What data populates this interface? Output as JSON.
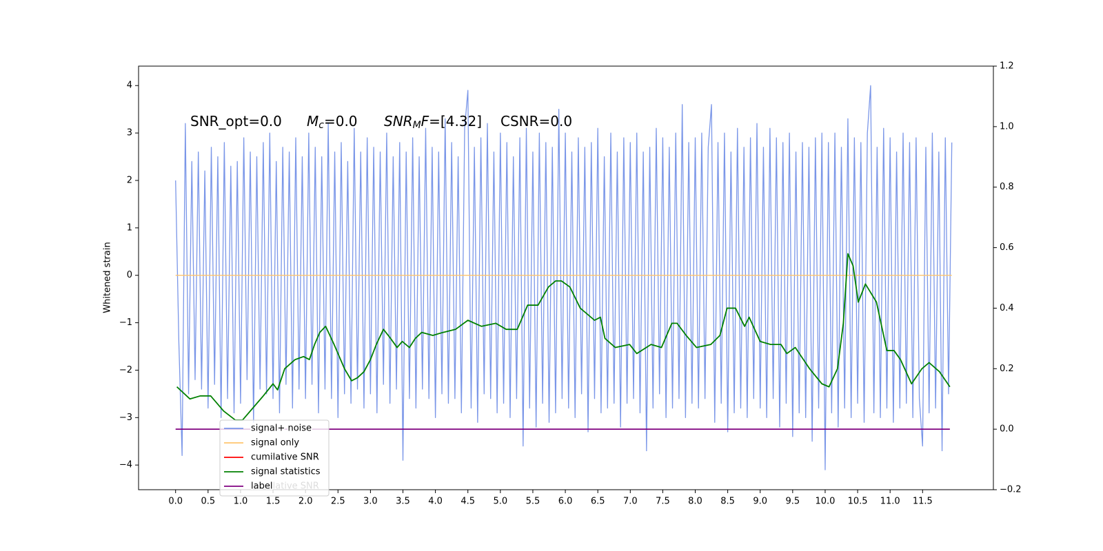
{
  "chart_data": {
    "type": "line",
    "ylabel": "Whitened strain",
    "annotations": [
      {
        "parts": [
          {
            "text": "SNR_opt=0.0",
            "style": "normal"
          }
        ]
      },
      {
        "parts": [
          {
            "text": "M",
            "style": "italic"
          },
          {
            "text": "c",
            "style": "italic-sub"
          },
          {
            "text": "=0.0",
            "style": "normal"
          }
        ]
      },
      {
        "parts": [
          {
            "text": "SNR",
            "style": "italic"
          },
          {
            "text": "M",
            "style": "italic-sub"
          },
          {
            "text": "F",
            "style": "italic"
          },
          {
            "text": "=[4.32]",
            "style": "normal"
          }
        ]
      },
      {
        "parts": [
          {
            "text": "CSNR=0.0",
            "style": "normal"
          }
        ]
      }
    ],
    "legend_ghost_text": "cumilative SNR",
    "legend": "lower left",
    "xlim": [
      -0.57,
      12.59
    ],
    "ylim": [
      -4.52,
      4.41
    ],
    "y2lim": [
      -0.2,
      1.2
    ],
    "xticks": [
      {
        "value": 0,
        "label": "0.0"
      },
      0.5,
      {
        "value": 1,
        "label": "1.0"
      },
      1.5,
      {
        "value": 2,
        "label": "2.0"
      },
      2.5,
      {
        "value": 3,
        "label": "3.0"
      },
      3.5,
      {
        "value": 4,
        "label": "4.0"
      },
      4.5,
      {
        "value": 5,
        "label": "5.0"
      },
      5.5,
      {
        "value": 6,
        "label": "6.0"
      },
      6.5,
      {
        "value": 7,
        "label": "7.0"
      },
      7.5,
      {
        "value": 8,
        "label": "8.0"
      },
      8.5,
      {
        "value": 9,
        "label": "9.0"
      },
      9.5,
      {
        "value": 10,
        "label": "10.0"
      },
      10.5,
      {
        "value": 11,
        "label": "11.0"
      },
      11.5
    ],
    "yticks": [
      {
        "value": -4,
        "label": "−4"
      },
      {
        "value": -3,
        "label": "−3"
      },
      {
        "value": -2,
        "label": "−2"
      },
      {
        "value": -1,
        "label": "−1"
      },
      0,
      1,
      2,
      3,
      4
    ],
    "y2ticks": [
      {
        "value": -0.2,
        "label": "−0.2"
      },
      {
        "value": 0,
        "label": "0.0"
      },
      0.2,
      0.4,
      0.6,
      0.8,
      {
        "value": 1,
        "label": "1.0"
      },
      1.2
    ],
    "series": [
      {
        "name": "signal+ noise",
        "color": "#7a96e8",
        "axis": "y",
        "x": [
          0,
          0.05,
          0.1,
          0.15,
          0.2,
          0.25,
          0.3,
          0.35,
          0.4,
          0.45,
          0.5,
          0.55,
          0.6,
          0.65,
          0.7,
          0.75,
          0.8,
          0.85,
          0.9,
          0.95,
          1,
          1.05,
          1.1,
          1.15,
          1.2,
          1.25,
          1.3,
          1.35,
          1.4,
          1.45,
          1.5,
          1.55,
          1.6,
          1.65,
          1.7,
          1.75,
          1.8,
          1.85,
          1.9,
          1.95,
          2,
          2.05,
          2.1,
          2.15,
          2.2,
          2.25,
          2.3,
          2.35,
          2.4,
          2.45,
          2.5,
          2.55,
          2.6,
          2.65,
          2.7,
          2.75,
          2.8,
          2.85,
          2.9,
          2.95,
          3,
          3.05,
          3.1,
          3.15,
          3.2,
          3.25,
          3.3,
          3.35,
          3.4,
          3.45,
          3.5,
          3.55,
          3.6,
          3.65,
          3.7,
          3.75,
          3.8,
          3.85,
          3.9,
          3.95,
          4,
          4.05,
          4.1,
          4.15,
          4.2,
          4.25,
          4.3,
          4.35,
          4.4,
          4.45,
          4.5,
          4.55,
          4.6,
          4.65,
          4.7,
          4.75,
          4.8,
          4.85,
          4.9,
          4.95,
          5,
          5.05,
          5.1,
          5.15,
          5.2,
          5.25,
          5.3,
          5.35,
          5.4,
          5.45,
          5.5,
          5.55,
          5.6,
          5.65,
          5.7,
          5.75,
          5.8,
          5.85,
          5.9,
          5.95,
          6,
          6.05,
          6.1,
          6.15,
          6.2,
          6.25,
          6.3,
          6.35,
          6.4,
          6.45,
          6.5,
          6.55,
          6.6,
          6.65,
          6.7,
          6.75,
          6.8,
          6.85,
          6.9,
          6.95,
          7,
          7.05,
          7.1,
          7.15,
          7.2,
          7.25,
          7.3,
          7.35,
          7.4,
          7.45,
          7.5,
          7.55,
          7.6,
          7.65,
          7.7,
          7.75,
          7.8,
          7.85,
          7.9,
          7.95,
          8,
          8.05,
          8.1,
          8.15,
          8.2,
          8.25,
          8.3,
          8.35,
          8.4,
          8.45,
          8.5,
          8.55,
          8.6,
          8.65,
          8.7,
          8.75,
          8.8,
          8.85,
          8.9,
          8.95,
          9,
          9.05,
          9.1,
          9.15,
          9.2,
          9.25,
          9.3,
          9.35,
          9.4,
          9.45,
          9.5,
          9.55,
          9.6,
          9.65,
          9.7,
          9.75,
          9.8,
          9.85,
          9.9,
          9.95,
          10,
          10.05,
          10.1,
          10.15,
          10.2,
          10.25,
          10.3,
          10.35,
          10.4,
          10.45,
          10.5,
          10.55,
          10.6,
          10.65,
          10.7,
          10.75,
          10.8,
          10.85,
          10.9,
          10.95,
          11,
          11.05,
          11.1,
          11.15,
          11.2,
          11.25,
          11.3,
          11.35,
          11.4,
          11.45,
          11.5,
          11.55,
          11.6,
          11.65,
          11.7,
          11.75,
          11.8,
          11.85,
          11.9,
          11.95
        ],
        "values": [
          2.0,
          -1.4,
          -3.8,
          3.2,
          -2.5,
          2.4,
          -2.2,
          2.6,
          -2.4,
          2.2,
          -2.8,
          2.7,
          -2.3,
          2.5,
          -3.0,
          2.8,
          -2.6,
          2.3,
          -2.9,
          2.4,
          -2.7,
          2.9,
          -2.2,
          2.6,
          -3.1,
          2.5,
          -2.4,
          2.8,
          -2.5,
          3.0,
          -2.6,
          2.4,
          -2.9,
          2.7,
          -2.3,
          2.6,
          -2.8,
          2.9,
          -2.4,
          2.5,
          -2.6,
          3.0,
          -2.3,
          2.7,
          -2.9,
          2.5,
          -2.4,
          3.2,
          -2.6,
          2.6,
          -3.0,
          2.8,
          -2.5,
          2.4,
          -2.7,
          3.1,
          -2.4,
          2.6,
          -2.8,
          2.9,
          -2.5,
          2.7,
          -2.9,
          2.6,
          -2.3,
          3.0,
          -2.7,
          2.5,
          -2.4,
          2.8,
          -3.9,
          2.6,
          -2.6,
          2.9,
          -2.8,
          2.5,
          -2.4,
          3.1,
          -2.6,
          2.7,
          -3.0,
          2.6,
          -2.5,
          3.3,
          -2.7,
          2.8,
          -2.6,
          2.5,
          -2.9,
          3.1,
          3.9,
          -2.8,
          2.7,
          -3.1,
          2.9,
          -2.5,
          3.2,
          -2.6,
          2.6,
          -2.9,
          3.0,
          -2.7,
          2.8,
          -3.0,
          2.5,
          -2.6,
          2.9,
          -3.6,
          3.1,
          -2.8,
          2.6,
          -3.2,
          3.0,
          -2.7,
          2.8,
          -3.1,
          2.7,
          -2.9,
          3.5,
          -2.6,
          3.0,
          -2.8,
          2.6,
          -3.0,
          2.9,
          -2.5,
          2.7,
          -3.3,
          2.8,
          -2.6,
          3.1,
          -2.9,
          2.5,
          -2.8,
          3.0,
          -2.7,
          2.6,
          -3.2,
          2.9,
          -2.7,
          2.8,
          -2.6,
          3.0,
          -2.9,
          2.6,
          -3.7,
          2.7,
          -2.8,
          3.1,
          -2.5,
          2.9,
          -3.0,
          2.7,
          -2.8,
          3.0,
          -2.6,
          3.6,
          -3.0,
          2.8,
          -2.7,
          2.9,
          -2.8,
          3.0,
          -2.6,
          2.7,
          3.6,
          -3.1,
          2.8,
          -2.7,
          3.0,
          -3.3,
          2.6,
          -2.9,
          3.1,
          -2.8,
          2.7,
          -3.0,
          2.9,
          -2.6,
          3.2,
          -2.8,
          2.7,
          -3.0,
          3.1,
          -2.6,
          2.9,
          -3.2,
          2.8,
          -2.7,
          3.0,
          -3.4,
          2.6,
          -2.9,
          2.8,
          -3.0,
          2.7,
          -3.5,
          2.9,
          -2.8,
          3.0,
          -4.1,
          2.8,
          -2.9,
          3.0,
          -3.2,
          2.7,
          -2.8,
          3.3,
          -3.0,
          2.9,
          -2.7,
          2.8,
          -3.1,
          3.0,
          4.0,
          -2.9,
          2.7,
          -3.0,
          3.1,
          -2.8,
          2.9,
          -3.1,
          2.6,
          -2.8,
          3.0,
          -2.7,
          2.8,
          -3.0,
          2.9,
          -2.6,
          -3.6,
          2.7,
          -2.9,
          3.0,
          -2.8,
          2.6,
          -3.7,
          2.9,
          -2.5,
          2.8
        ]
      },
      {
        "name": "signal only",
        "color": "#ffc46e",
        "axis": "y",
        "x": [
          0,
          11.95
        ],
        "values": [
          0,
          0
        ]
      },
      {
        "name": "cumilative SNR",
        "color": "#ff0000",
        "axis": "y",
        "x": [],
        "values": []
      },
      {
        "name": "signal statistics",
        "color": "#008000",
        "axis": "y2",
        "x": [
          0.02,
          0.22,
          0.38,
          0.54,
          0.74,
          0.92,
          1.03,
          1.19,
          1.35,
          1.5,
          1.57,
          1.68,
          1.84,
          1.97,
          2.06,
          2.14,
          2.22,
          2.31,
          2.44,
          2.6,
          2.71,
          2.8,
          2.9,
          3.0,
          3.09,
          3.2,
          3.31,
          3.41,
          3.49,
          3.6,
          3.69,
          3.79,
          3.96,
          4.12,
          4.31,
          4.5,
          4.71,
          4.93,
          5.09,
          5.26,
          5.42,
          5.58,
          5.74,
          5.85,
          5.94,
          6.07,
          6.23,
          6.45,
          6.54,
          6.61,
          6.77,
          6.99,
          7.1,
          7.32,
          7.48,
          7.64,
          7.72,
          7.86,
          8.02,
          8.24,
          8.38,
          8.49,
          8.62,
          8.76,
          8.83,
          9.0,
          9.16,
          9.32,
          9.41,
          9.54,
          9.76,
          9.95,
          10.06,
          10.19,
          10.28,
          10.35,
          10.43,
          10.51,
          10.62,
          10.79,
          10.95,
          11.06,
          11.16,
          11.33,
          11.49,
          11.6,
          11.76,
          11.92
        ],
        "values": [
          0.14,
          0.1,
          0.11,
          0.11,
          0.06,
          0.03,
          0.03,
          0.07,
          0.11,
          0.15,
          0.13,
          0.2,
          0.23,
          0.24,
          0.23,
          0.28,
          0.32,
          0.34,
          0.28,
          0.2,
          0.16,
          0.17,
          0.19,
          0.23,
          0.28,
          0.33,
          0.3,
          0.27,
          0.29,
          0.27,
          0.3,
          0.32,
          0.31,
          0.32,
          0.33,
          0.36,
          0.34,
          0.35,
          0.33,
          0.33,
          0.41,
          0.41,
          0.47,
          0.49,
          0.49,
          0.47,
          0.4,
          0.36,
          0.37,
          0.3,
          0.27,
          0.28,
          0.25,
          0.28,
          0.27,
          0.35,
          0.35,
          0.31,
          0.27,
          0.28,
          0.31,
          0.4,
          0.4,
          0.34,
          0.37,
          0.29,
          0.28,
          0.28,
          0.25,
          0.27,
          0.2,
          0.15,
          0.14,
          0.2,
          0.35,
          0.58,
          0.54,
          0.42,
          0.48,
          0.42,
          0.26,
          0.26,
          0.23,
          0.15,
          0.2,
          0.22,
          0.19,
          0.14
        ]
      },
      {
        "name": "label",
        "color": "#800080",
        "axis": "y2",
        "x": [
          0,
          11.92
        ],
        "values": [
          0,
          0
        ]
      }
    ]
  }
}
